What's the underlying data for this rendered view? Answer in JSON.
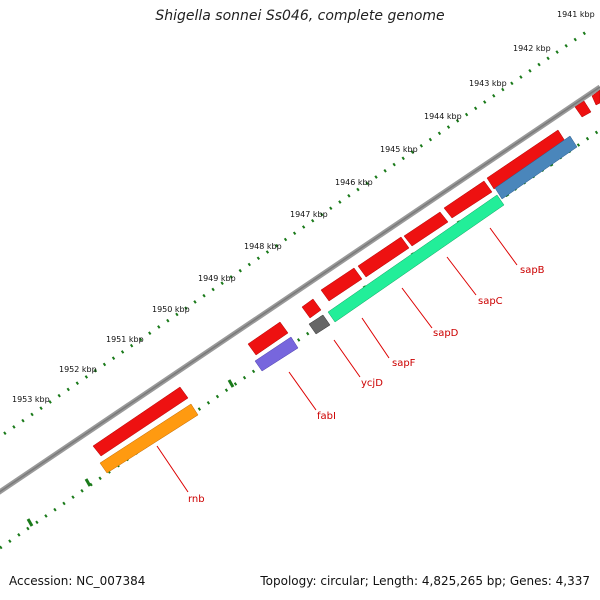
{
  "title": "Shigella sonnei Ss046, complete genome",
  "footer": {
    "accession": "Accession: NC_007384",
    "summary": "Topology: circular; Length: 4,825,265 bp; Genes: 4,337"
  },
  "colors": {
    "backbone": "#8a8a8a",
    "tick_dots": "#1a7a1a",
    "gene_forward": "#ee1111",
    "label_line": "#dd0000",
    "label_text": "#cc0000"
  },
  "scale_labels": [
    "1941 kbp",
    "1942 kbp",
    "1943 kbp",
    "1944 kbp",
    "1945 kbp",
    "1946 kbp",
    "1947 kbp",
    "1948 kbp",
    "1949 kbp",
    "1950 kbp",
    "1951 kbp",
    "1952 kbp",
    "1953 kbp"
  ],
  "genes": [
    {
      "name": "rnb",
      "color": "#ff9a10"
    },
    {
      "name": "fabI",
      "color": "#7766dd"
    },
    {
      "name": "ycjD",
      "color": "#666666"
    },
    {
      "name": "sapF",
      "color": "#22ee99"
    },
    {
      "name": "sapD",
      "color": "#22ee99"
    },
    {
      "name": "sapC",
      "color": "#22ee99"
    },
    {
      "name": "sapB",
      "color": "#4a86bb"
    }
  ]
}
